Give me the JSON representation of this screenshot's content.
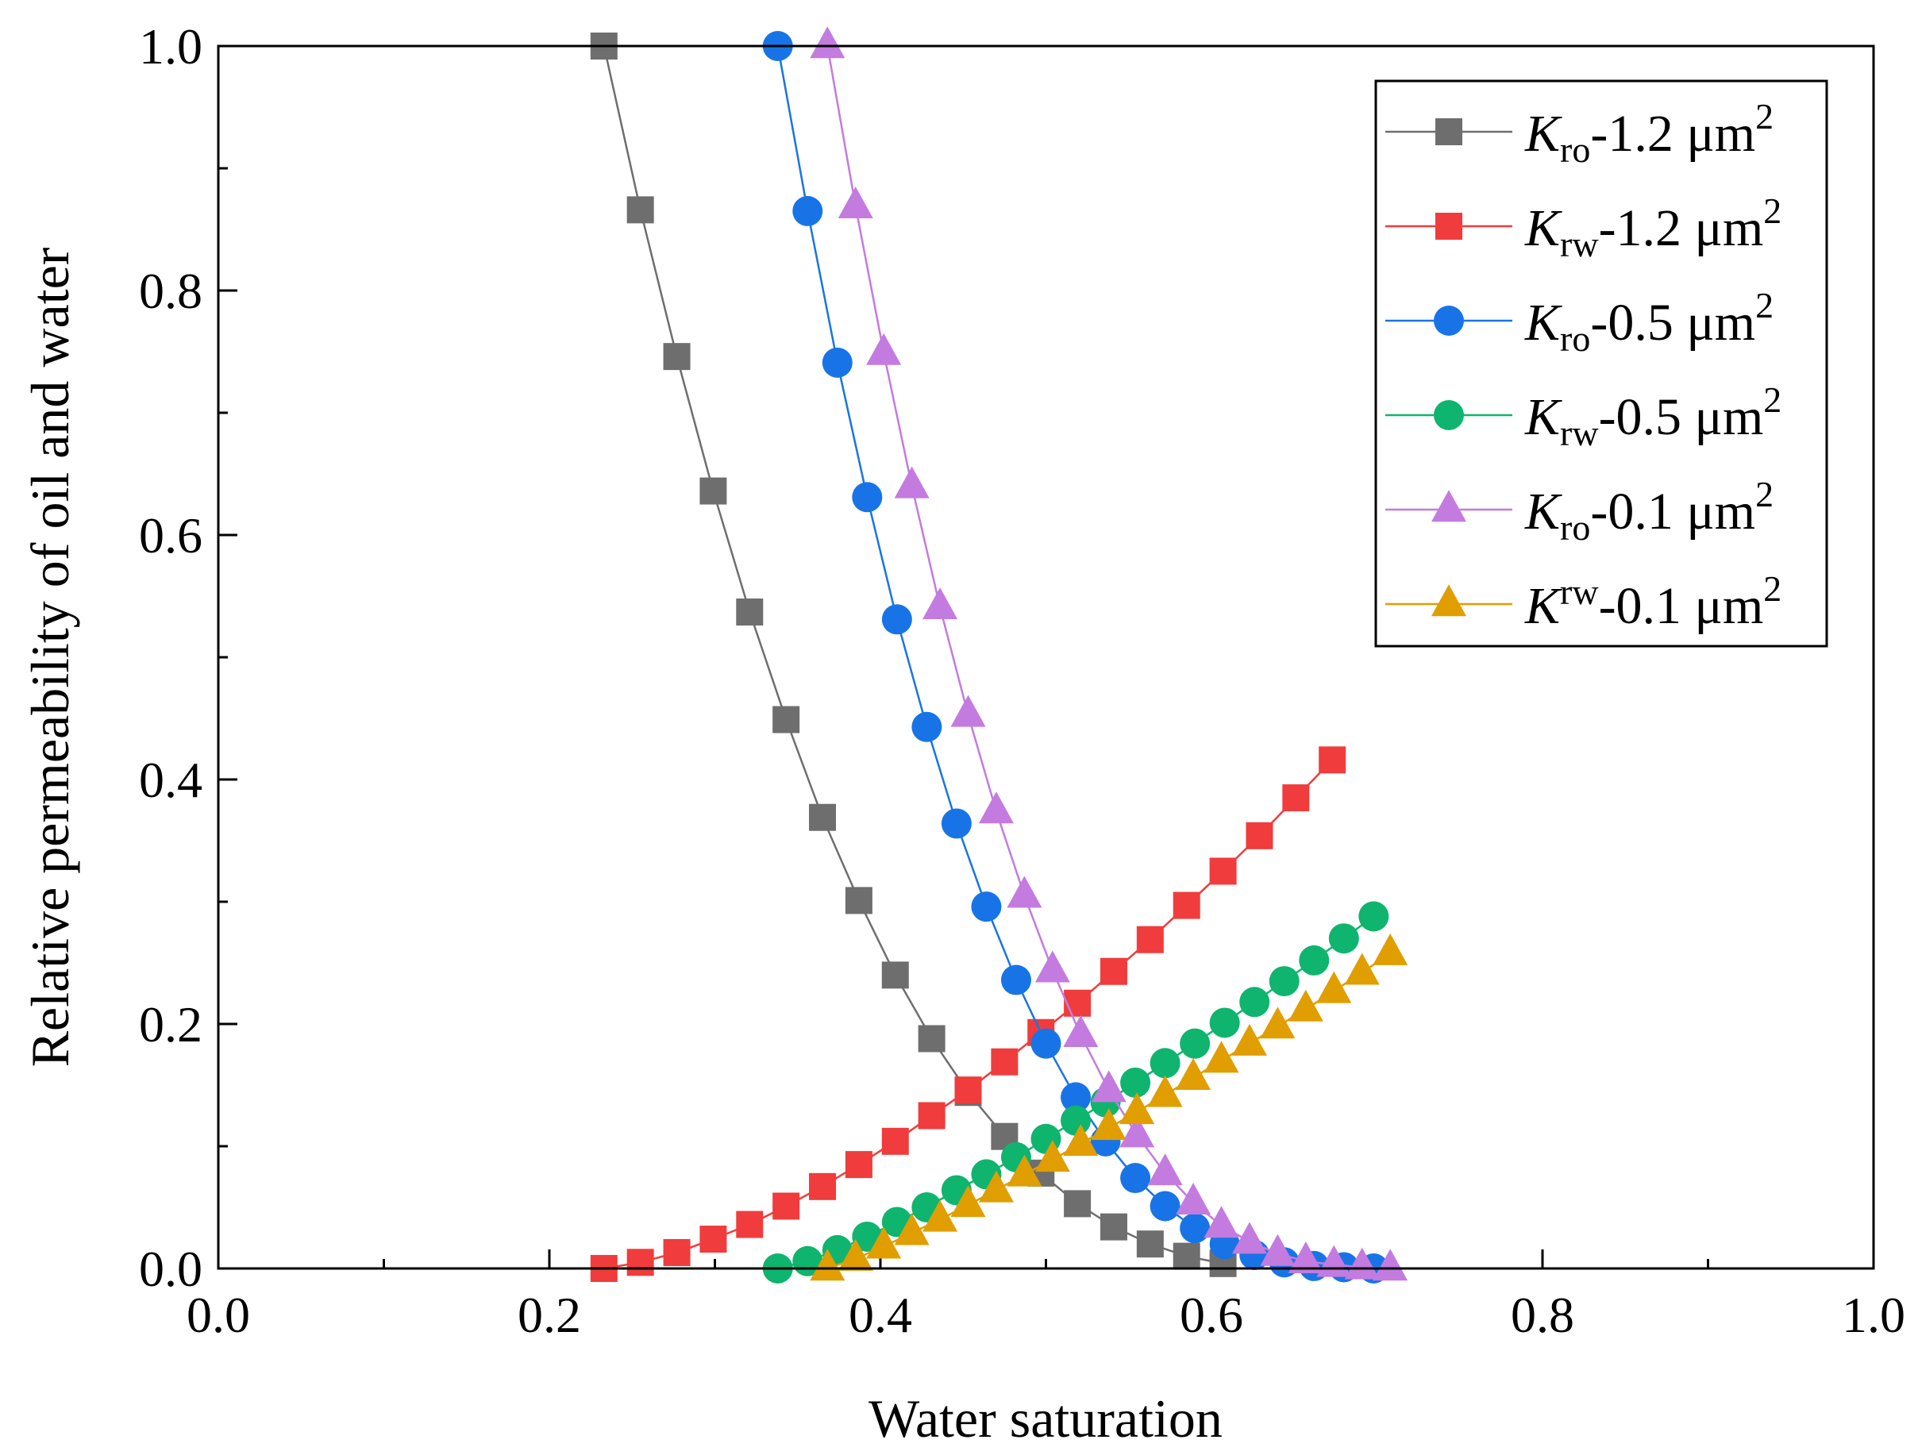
{
  "chart_data": {
    "type": "line",
    "xlabel": "Water saturation",
    "ylabel": "Relative permeability of oil and water",
    "xlim": [
      0.0,
      1.0
    ],
    "ylim": [
      0.0,
      1.0
    ],
    "xticks": [
      "0.0",
      "0.2",
      "0.4",
      "0.6",
      "0.8",
      "1.0"
    ],
    "yticks": [
      "0.0",
      "0.2",
      "0.4",
      "0.6",
      "0.8",
      "1.0"
    ],
    "grid": false,
    "legend_position": "top-right",
    "series": [
      {
        "id": "kro-1-2",
        "legend": {
          "k": "K",
          "sub": "ro",
          "sup": "",
          "rest": "-1.2 μm",
          "exp": "2"
        },
        "marker": "square",
        "color": "#6e6e6e",
        "x": [
          0.233,
          0.255,
          0.277,
          0.299,
          0.321,
          0.343,
          0.365,
          0.387,
          0.409,
          0.431,
          0.453,
          0.475,
          0.497,
          0.519,
          0.541,
          0.563,
          0.585,
          0.607
        ],
        "y": [
          1.0,
          0.866,
          0.746,
          0.636,
          0.537,
          0.449,
          0.369,
          0.301,
          0.24,
          0.188,
          0.144,
          0.108,
          0.078,
          0.053,
          0.034,
          0.02,
          0.01,
          0.004
        ]
      },
      {
        "id": "krw-1-2",
        "legend": {
          "k": "K",
          "sub": "rw",
          "sup": "",
          "rest": "-1.2 μm",
          "exp": "2"
        },
        "marker": "square",
        "color": "#f03c3c",
        "x": [
          0.233,
          0.255,
          0.277,
          0.299,
          0.321,
          0.343,
          0.365,
          0.387,
          0.409,
          0.431,
          0.453,
          0.475,
          0.497,
          0.519,
          0.541,
          0.563,
          0.585,
          0.607,
          0.629,
          0.651,
          0.673
        ],
        "y": [
          0.0,
          0.005,
          0.013,
          0.024,
          0.036,
          0.051,
          0.067,
          0.085,
          0.104,
          0.125,
          0.146,
          0.169,
          0.193,
          0.217,
          0.243,
          0.269,
          0.297,
          0.325,
          0.354,
          0.385,
          0.416
        ]
      },
      {
        "id": "kro-0-5",
        "legend": {
          "k": "K",
          "sub": "ro",
          "sup": "",
          "rest": "-0.5 μm",
          "exp": "2"
        },
        "marker": "circle",
        "color": "#1874e6",
        "x": [
          0.338,
          0.356,
          0.374,
          0.392,
          0.41,
          0.428,
          0.446,
          0.464,
          0.482,
          0.5,
          0.518,
          0.536,
          0.554,
          0.572,
          0.59,
          0.608,
          0.626,
          0.644,
          0.662,
          0.68,
          0.698
        ],
        "y": [
          1.0,
          0.865,
          0.741,
          0.631,
          0.531,
          0.443,
          0.364,
          0.296,
          0.236,
          0.184,
          0.14,
          0.104,
          0.074,
          0.051,
          0.033,
          0.02,
          0.011,
          0.005,
          0.002,
          0.001,
          0.0
        ]
      },
      {
        "id": "krw-0-5",
        "legend": {
          "k": "K",
          "sub": "rw",
          "sup": "",
          "rest": "-0.5 μm",
          "exp": "2"
        },
        "marker": "circle",
        "color": "#0fb46e",
        "x": [
          0.338,
          0.356,
          0.374,
          0.392,
          0.41,
          0.428,
          0.446,
          0.464,
          0.482,
          0.5,
          0.518,
          0.536,
          0.554,
          0.572,
          0.59,
          0.608,
          0.626,
          0.644,
          0.662,
          0.68,
          0.698
        ],
        "y": [
          0.0,
          0.006,
          0.015,
          0.026,
          0.038,
          0.05,
          0.064,
          0.077,
          0.091,
          0.106,
          0.121,
          0.136,
          0.152,
          0.168,
          0.184,
          0.201,
          0.218,
          0.235,
          0.252,
          0.27,
          0.288
        ]
      },
      {
        "id": "kro-0-1",
        "legend": {
          "k": "K",
          "sub": "ro",
          "sup": "",
          "rest": "-0.1 μm",
          "exp": "2"
        },
        "marker": "triangle",
        "color": "#c37be0",
        "x": [
          0.368,
          0.385,
          0.402,
          0.419,
          0.436,
          0.453,
          0.47,
          0.487,
          0.504,
          0.521,
          0.538,
          0.555,
          0.572,
          0.589,
          0.606,
          0.623,
          0.64,
          0.657,
          0.674,
          0.691,
          0.708
        ],
        "y": [
          1.0,
          0.869,
          0.749,
          0.64,
          0.541,
          0.453,
          0.374,
          0.305,
          0.244,
          0.191,
          0.146,
          0.109,
          0.078,
          0.054,
          0.035,
          0.022,
          0.012,
          0.006,
          0.003,
          0.001,
          0.0
        ]
      },
      {
        "id": "krw-0-1",
        "legend": {
          "k": "K",
          "sub": "",
          "sup": "rw",
          "rest": "-0.1 μm",
          "exp": "2"
        },
        "marker": "triangle",
        "color": "#e09e00",
        "x": [
          0.368,
          0.385,
          0.402,
          0.419,
          0.436,
          0.453,
          0.47,
          0.487,
          0.504,
          0.521,
          0.538,
          0.555,
          0.572,
          0.589,
          0.606,
          0.623,
          0.64,
          0.657,
          0.674,
          0.691,
          0.708
        ],
        "y": [
          0.0,
          0.008,
          0.018,
          0.029,
          0.04,
          0.052,
          0.064,
          0.077,
          0.089,
          0.102,
          0.115,
          0.128,
          0.142,
          0.156,
          0.17,
          0.184,
          0.198,
          0.212,
          0.227,
          0.242,
          0.258
        ]
      }
    ]
  }
}
